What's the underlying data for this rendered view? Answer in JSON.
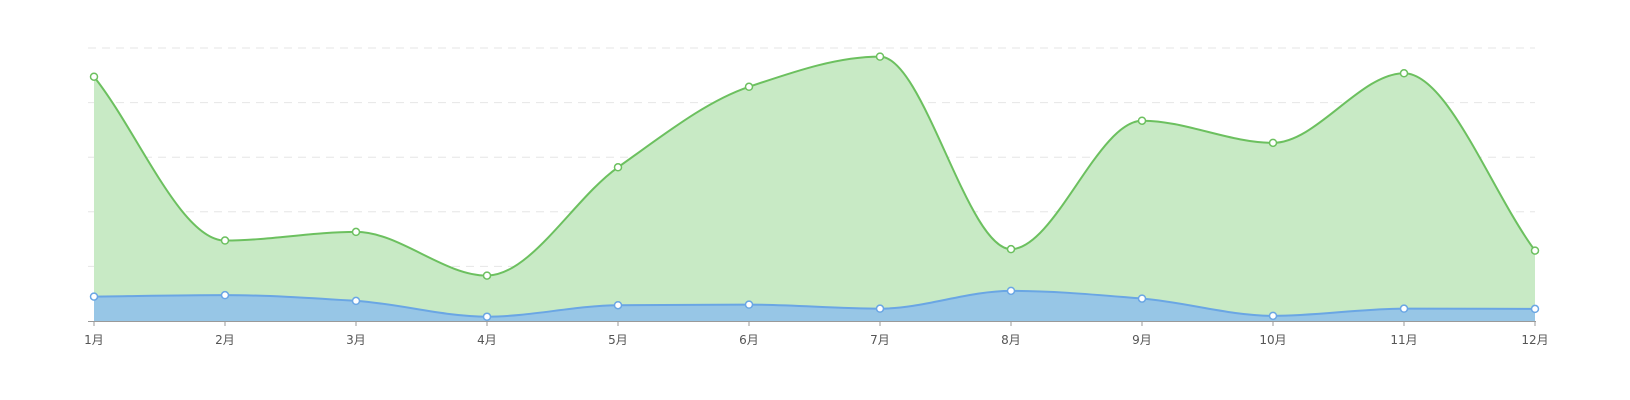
{
  "chart_data": {
    "type": "area",
    "categories": [
      "1月",
      "2月",
      "3月",
      "4月",
      "5月",
      "6月",
      "7月",
      "8月",
      "9月",
      "10月",
      "11月",
      "12月"
    ],
    "series": [
      {
        "color": "#6cc05f",
        "fill": "#c8eac5",
        "values": [
          850,
          280,
          310,
          158,
          535,
          815,
          920,
          250,
          697,
          620,
          862,
          245
        ]
      },
      {
        "color": "#6aa6e4",
        "fill": "#97c6e6",
        "values": [
          85,
          90,
          70,
          15,
          55,
          57,
          43,
          105,
          78,
          18,
          43,
          42
        ]
      }
    ],
    "ylim": [
      0,
      950
    ],
    "stacked": false,
    "smooth": true,
    "grid": true,
    "legend": "none"
  }
}
